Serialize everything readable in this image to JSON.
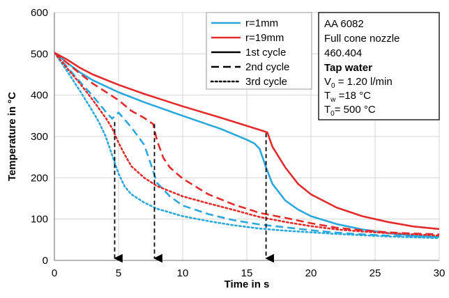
{
  "chart_data": {
    "type": "line",
    "xlabel": "Time in s",
    "ylabel": "Temperature in °C",
    "xlim": [
      0,
      30
    ],
    "ylim": [
      0,
      600
    ],
    "xticks": [
      0,
      5,
      10,
      15,
      20,
      25,
      30
    ],
    "yticks": [
      0,
      100,
      200,
      300,
      400,
      500,
      600
    ],
    "grid": true,
    "colors": {
      "r_1mm": "#2aa8de",
      "r_19mm": "#e32b2b"
    },
    "legend_position": "top-center",
    "legend": [
      {
        "label": "r=1mm",
        "color": "#2aa8de",
        "style": "solid"
      },
      {
        "label": "r=19mm",
        "color": "#e32b2b",
        "style": "solid"
      },
      {
        "label": "1st cycle",
        "color": "#000000",
        "style": "solid"
      },
      {
        "label": "2nd cycle",
        "color": "#000000",
        "style": "dashed"
      },
      {
        "label": "3rd cycle",
        "color": "#000000",
        "style": "dotted"
      }
    ],
    "annotation_box": {
      "lines": [
        {
          "text": "AA 6082"
        },
        {
          "text": "Full cone nozzle"
        },
        {
          "text": "460.404"
        },
        {
          "text": "Tap water"
        },
        {
          "main": "V",
          "sub": "0",
          "rest": " = 1.20 l/min"
        },
        {
          "main": "T",
          "sub": "w",
          "rest": " =18 °C"
        },
        {
          "main": "T",
          "sub": "0",
          "rest": "= 500 °C"
        }
      ]
    },
    "arrows": [
      {
        "x": 4.7,
        "y_from": 335,
        "y_to": 0
      },
      {
        "x": 7.8,
        "y_from": 330,
        "y_to": 0
      },
      {
        "x": 16.5,
        "y_from": 308,
        "y_to": 0
      }
    ],
    "series": [
      {
        "name": "r=1mm",
        "color": "#2aa8de",
        "style": "solid",
        "x": [
          0,
          1,
          2,
          3,
          5,
          7,
          10,
          13,
          15,
          15.6,
          16,
          16.5,
          17,
          18,
          19,
          20,
          22,
          24,
          26,
          28,
          30
        ],
        "y": [
          503,
          478,
          455,
          436,
          407,
          383,
          350,
          318,
          292,
          283,
          270,
          225,
          185,
          145,
          123,
          107,
          88,
          75,
          66,
          60,
          57
        ]
      },
      {
        "name": "r=19mm",
        "color": "#e32b2b",
        "style": "solid",
        "x": [
          0,
          1,
          2,
          3,
          5,
          7,
          10,
          13,
          16,
          16.6,
          17,
          18,
          19,
          20,
          22,
          24,
          26,
          28,
          30
        ],
        "y": [
          503,
          486,
          466,
          450,
          425,
          403,
          373,
          345,
          316,
          310,
          275,
          225,
          185,
          160,
          128,
          107,
          93,
          82,
          76
        ]
      },
      {
        "name": "r=1mm",
        "color": "#2aa8de",
        "style": "dashed",
        "x": [
          0,
          1,
          2,
          3,
          4,
          4.5,
          5,
          6,
          7,
          7.5,
          8,
          9,
          10,
          12,
          14,
          16,
          18,
          20,
          22,
          24,
          26,
          28,
          30
        ],
        "y": [
          503,
          468,
          432,
          398,
          360,
          343,
          358,
          322,
          280,
          235,
          188,
          155,
          133,
          112,
          97,
          87,
          80,
          73,
          67,
          63,
          60,
          58,
          56
        ]
      },
      {
        "name": "r=19mm",
        "color": "#e32b2b",
        "style": "dashed",
        "x": [
          0,
          1,
          2,
          3,
          4,
          5,
          6,
          7,
          7.7,
          8,
          8.5,
          9,
          10,
          12,
          14,
          16,
          18,
          20,
          22,
          24,
          26,
          28,
          30
        ],
        "y": [
          503,
          478,
          452,
          428,
          408,
          388,
          362,
          345,
          330,
          290,
          248,
          225,
          198,
          160,
          135,
          115,
          103,
          90,
          79,
          73,
          68,
          65,
          63
        ]
      },
      {
        "name": "r=1mm",
        "color": "#2aa8de",
        "style": "dotted",
        "x": [
          0,
          1,
          2,
          3,
          3.5,
          4,
          4.5,
          5,
          5.5,
          6,
          7,
          8,
          10,
          12,
          14,
          16,
          18,
          20,
          22,
          24,
          26,
          28,
          30
        ],
        "y": [
          503,
          458,
          410,
          360,
          333,
          300,
          255,
          210,
          178,
          160,
          140,
          125,
          107,
          95,
          85,
          77,
          72,
          68,
          64,
          61,
          58,
          56,
          54
        ]
      },
      {
        "name": "r=19mm",
        "color": "#e32b2b",
        "style": "dotted",
        "x": [
          0,
          1,
          2,
          3,
          4,
          4.5,
          5,
          5.5,
          6,
          7,
          8,
          10,
          12,
          14,
          16,
          18,
          20,
          22,
          24,
          26,
          28,
          30
        ],
        "y": [
          503,
          465,
          428,
          388,
          345,
          320,
          285,
          255,
          228,
          200,
          180,
          155,
          138,
          122,
          105,
          93,
          83,
          75,
          70,
          66,
          63,
          60
        ]
      }
    ]
  }
}
